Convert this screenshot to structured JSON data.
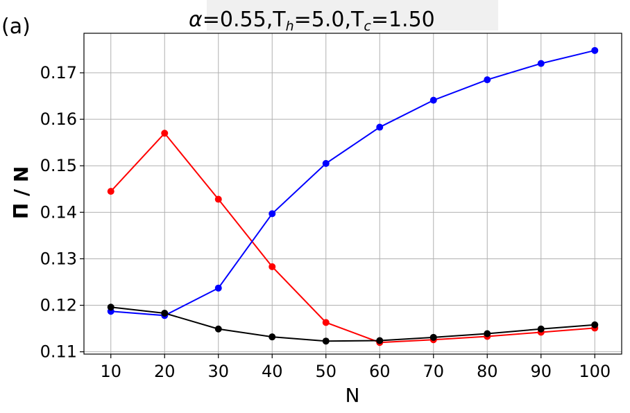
{
  "panel_label": "(a)",
  "chart_data": {
    "type": "line",
    "title": {
      "alpha_symbol": "α",
      "alpha_value": "=0.55,",
      "th_base": "T",
      "th_sub": "h",
      "th_value": "=5.0,",
      "tc_base": "T",
      "tc_sub": "c",
      "tc_value": "=1.50"
    },
    "xlabel": "N",
    "ylabel": "Π / N",
    "xlim": [
      5,
      105
    ],
    "ylim": [
      0.1095,
      0.1785
    ],
    "xticks": [
      10,
      20,
      30,
      40,
      50,
      60,
      70,
      80,
      90,
      100
    ],
    "xtick_labels": [
      "10",
      "20",
      "30",
      "40",
      "50",
      "60",
      "70",
      "80",
      "90",
      "100"
    ],
    "yticks": [
      0.11,
      0.12,
      0.13,
      0.14,
      0.15,
      0.16,
      0.17
    ],
    "ytick_labels": [
      "0.11",
      "0.12",
      "0.13",
      "0.14",
      "0.15",
      "0.16",
      "0.17"
    ],
    "grid": true,
    "x": [
      10,
      20,
      30,
      40,
      50,
      60,
      70,
      80,
      90,
      100
    ],
    "series": [
      {
        "color": "#ff0000",
        "values": [
          0.1445,
          0.157,
          0.1428,
          0.1283,
          0.1163,
          0.112,
          0.1126,
          0.1133,
          0.1142,
          0.1151
        ]
      },
      {
        "color": "#0000ff",
        "values": [
          0.1187,
          0.1178,
          0.1237,
          0.1397,
          0.1505,
          0.1583,
          0.1641,
          0.1685,
          0.172,
          0.1748
        ]
      },
      {
        "color": "#000000",
        "values": [
          0.1196,
          0.1183,
          0.1149,
          0.1132,
          0.1123,
          0.1124,
          0.1131,
          0.1139,
          0.1149,
          0.1158
        ]
      }
    ]
  }
}
